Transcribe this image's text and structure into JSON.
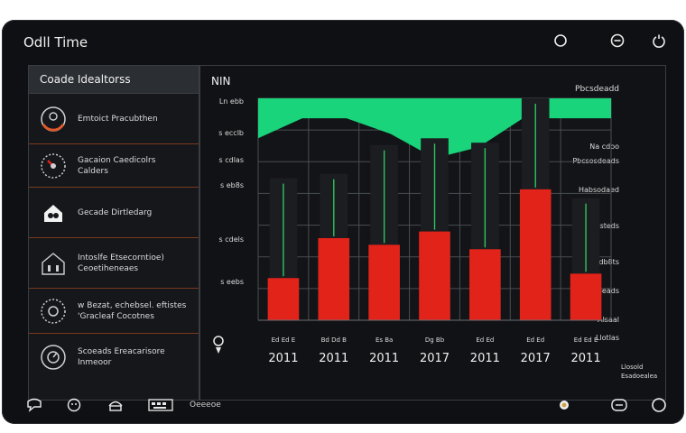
{
  "app": {
    "title": "Odll Time"
  },
  "titlebar_icons": [
    "record-icon",
    "minimize-icon",
    "power-icon"
  ],
  "sidebar": {
    "header": "Coade Idealtorss",
    "items": [
      {
        "icon": "gauge-icon",
        "lines": [
          "Emtoict Pracubthen"
        ]
      },
      {
        "icon": "speedometer-icon",
        "lines": [
          "Gacaion Caedicolrs",
          "Calders"
        ]
      },
      {
        "icon": "home-icon",
        "lines": [
          "Gecade Dirtledarg"
        ]
      },
      {
        "icon": "house-icon",
        "lines": [
          "Intoslfe Etsecorntioe)",
          "Ceoetiheneaes"
        ]
      },
      {
        "icon": "dial-icon",
        "lines": [
          "w Bezat, echebsel. eftistes",
          "'Gracleaf Cocotnes"
        ]
      },
      {
        "icon": "meter-icon",
        "lines": [
          "Scoeads Ereacarisore",
          "Inmeoor"
        ]
      }
    ]
  },
  "chart_panel": {
    "title": "NIN",
    "right_header": "Pbcsdeadd",
    "right_labels": [
      "Na cdoo",
      "Pbcsosdeads",
      "Habsodaed",
      "Mlanalsteds",
      "IHaodb8ts",
      "AlOsdeads",
      "Alsaal",
      "Llotlas"
    ],
    "right_footer": [
      "Llosold",
      "Esadoealea"
    ],
    "left_labels": [
      "Ln ebb",
      "s ecclb",
      "s cdlas",
      "s eb8s",
      "s cdels",
      "",
      "s eebs",
      ""
    ]
  },
  "chart_data": {
    "type": "bar",
    "categories": [
      "2011",
      "2011",
      "2011",
      "2017",
      "2011",
      "2017",
      "2011"
    ],
    "category_sublabels": [
      "Ed Ed E",
      "Bd Dd B",
      "Es Ba",
      "Dg Bb",
      "Ed Ed",
      "Ed Ed",
      "Ed Ed E"
    ],
    "series": [
      {
        "values": [
          19,
          37,
          34,
          40,
          32,
          59,
          21
        ]
      },
      {
        "values": [
          64,
          66,
          79,
          82,
          80,
          100,
          55
        ]
      }
    ],
    "area": [
      82,
      91,
      91,
      84,
      73,
      78,
      91,
      91,
      91
    ],
    "ylim": [
      0,
      100
    ],
    "colors": {
      "red": "#e2231a",
      "dark": "#1b1d20",
      "green": "#19d47a",
      "line": "#2fc45f"
    }
  },
  "bottom_bar": {
    "label": "Oeeeoe",
    "icons": [
      "chat-icon",
      "emoji-icon",
      "mail-icon",
      "keyboard-icon",
      "brightness-icon",
      "message-icon",
      "settings-icon"
    ]
  }
}
